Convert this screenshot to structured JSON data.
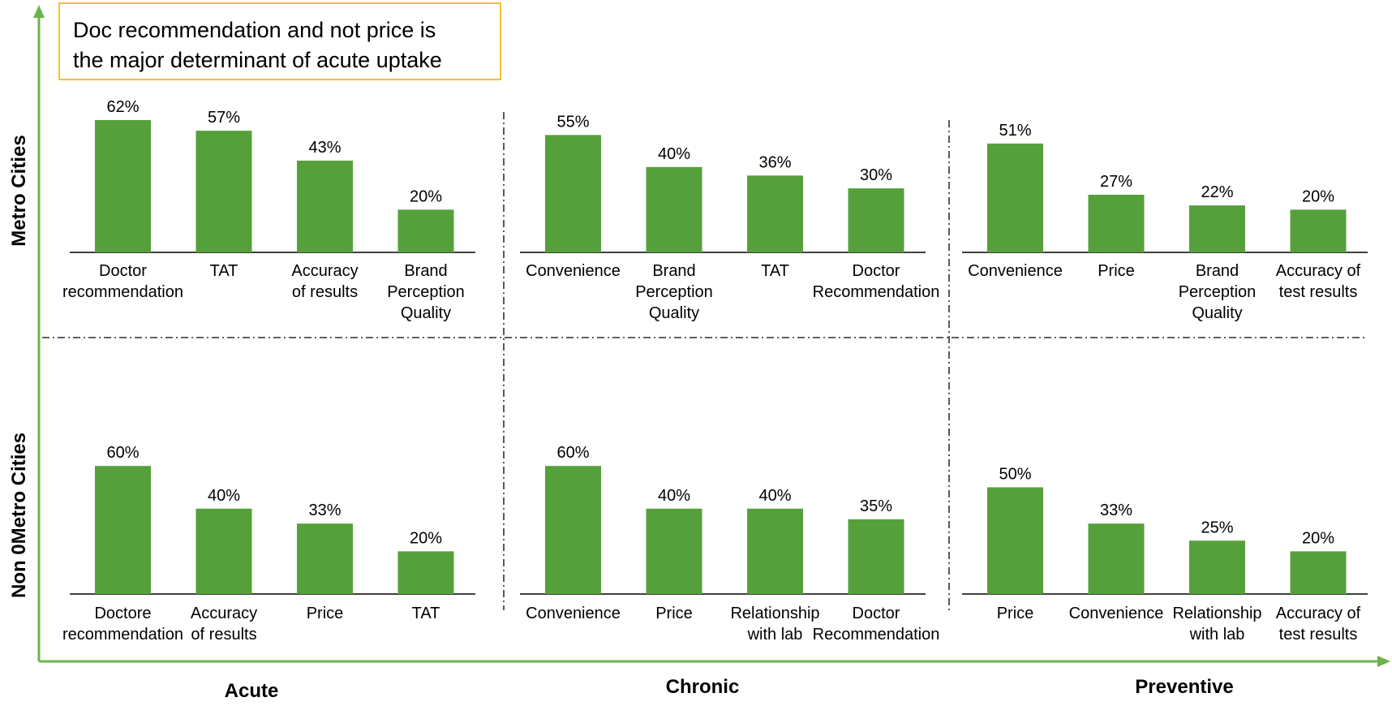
{
  "callout": {
    "line1": "Doc recommendation and not price is",
    "line2": "the major determinant of acute uptake"
  },
  "row_labels": [
    "Metro Cities",
    "Non 0Metro Cities"
  ],
  "column_labels": [
    "Acute",
    "Chronic",
    "Preventive"
  ],
  "colors": {
    "bar": "#56A03C",
    "axis_arrow": "#6BB44A",
    "callout_border": "#F2C230",
    "divider": "#000000"
  },
  "chart_data": [
    {
      "type": "bar",
      "row": "Metro Cities",
      "column": "Acute",
      "categories": [
        [
          "Doctor",
          "recommendation"
        ],
        [
          "TAT"
        ],
        [
          "Accuracy",
          "of results"
        ],
        [
          "Brand",
          "Perception",
          "Quality"
        ]
      ],
      "values": [
        62,
        57,
        43,
        20
      ],
      "value_labels": [
        "62%",
        "57%",
        "43%",
        "20%"
      ],
      "unit": "%"
    },
    {
      "type": "bar",
      "row": "Metro Cities",
      "column": "Chronic",
      "categories": [
        [
          "Convenience"
        ],
        [
          "Brand",
          "Perception",
          "Quality"
        ],
        [
          "TAT"
        ],
        [
          "Doctor",
          "Recommendation"
        ]
      ],
      "values": [
        55,
        40,
        36,
        30
      ],
      "value_labels": [
        "55%",
        "40%",
        "36%",
        "30%"
      ],
      "unit": "%"
    },
    {
      "type": "bar",
      "row": "Metro Cities",
      "column": "Preventive",
      "categories": [
        [
          "Convenience"
        ],
        [
          "Price"
        ],
        [
          "Brand",
          "Perception",
          "Quality"
        ],
        [
          "Accuracy of",
          "test results"
        ]
      ],
      "values": [
        51,
        27,
        22,
        20
      ],
      "value_labels": [
        "51%",
        "27%",
        "22%",
        "20%"
      ],
      "unit": "%"
    },
    {
      "type": "bar",
      "row": "Non 0Metro Cities",
      "column": "Acute",
      "categories": [
        [
          "Doctore",
          "recommendation"
        ],
        [
          "Accuracy",
          "of results"
        ],
        [
          "Price"
        ],
        [
          "TAT"
        ]
      ],
      "values": [
        60,
        40,
        33,
        20
      ],
      "value_labels": [
        "60%",
        "40%",
        "33%",
        "20%"
      ],
      "unit": "%"
    },
    {
      "type": "bar",
      "row": "Non 0Metro Cities",
      "column": "Chronic",
      "categories": [
        [
          "Convenience"
        ],
        [
          "Price"
        ],
        [
          "Relationship",
          "with lab"
        ],
        [
          "Doctor",
          "Recommendation"
        ]
      ],
      "values": [
        60,
        40,
        40,
        35
      ],
      "value_labels": [
        "60%",
        "40%",
        "40%",
        "35%"
      ],
      "unit": "%"
    },
    {
      "type": "bar",
      "row": "Non 0Metro Cities",
      "column": "Preventive",
      "categories": [
        [
          "Price"
        ],
        [
          "Convenience"
        ],
        [
          "Relationship",
          "with lab"
        ],
        [
          "Accuracy of",
          "test results"
        ]
      ],
      "values": [
        50,
        33,
        25,
        20
      ],
      "value_labels": [
        "50%",
        "33%",
        "25%",
        "20%"
      ],
      "unit": "%"
    }
  ]
}
